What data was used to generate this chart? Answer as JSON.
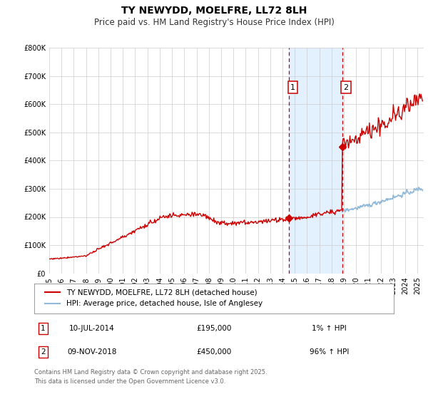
{
  "title": "TY NEWYDD, MOELFRE, LL72 8LH",
  "subtitle": "Price paid vs. HM Land Registry's House Price Index (HPI)",
  "ylim": [
    0,
    800000
  ],
  "yticks": [
    0,
    100000,
    200000,
    300000,
    400000,
    500000,
    600000,
    700000,
    800000
  ],
  "ytick_labels": [
    "£0",
    "£100K",
    "£200K",
    "£300K",
    "£400K",
    "£500K",
    "£600K",
    "£700K",
    "£800K"
  ],
  "xlim_start": 1995.0,
  "xlim_end": 2025.5,
  "background_color": "#ffffff",
  "plot_bg_color": "#ffffff",
  "grid_color": "#cccccc",
  "hpi_color": "#90b8d8",
  "price_color": "#cc0000",
  "sale1_date": 2014.52,
  "sale1_price": 195000,
  "sale2_date": 2018.86,
  "sale2_price": 450000,
  "shade_color": "#ddeeff",
  "dashed_line_color": "#cc0000",
  "legend_line1": "TY NEWYDD, MOELFRE, LL72 8LH (detached house)",
  "legend_line2": "HPI: Average price, detached house, Isle of Anglesey",
  "table_row1_num": "1",
  "table_row1_date": "10-JUL-2014",
  "table_row1_price": "£195,000",
  "table_row1_hpi": "1% ↑ HPI",
  "table_row2_num": "2",
  "table_row2_date": "09-NOV-2018",
  "table_row2_price": "£450,000",
  "table_row2_hpi": "96% ↑ HPI",
  "footnote": "Contains HM Land Registry data © Crown copyright and database right 2025.\nThis data is licensed under the Open Government Licence v3.0.",
  "title_fontsize": 10,
  "subtitle_fontsize": 8.5,
  "tick_fontsize": 7,
  "legend_fontsize": 7.5,
  "table_fontsize": 7.5,
  "footnote_fontsize": 6
}
